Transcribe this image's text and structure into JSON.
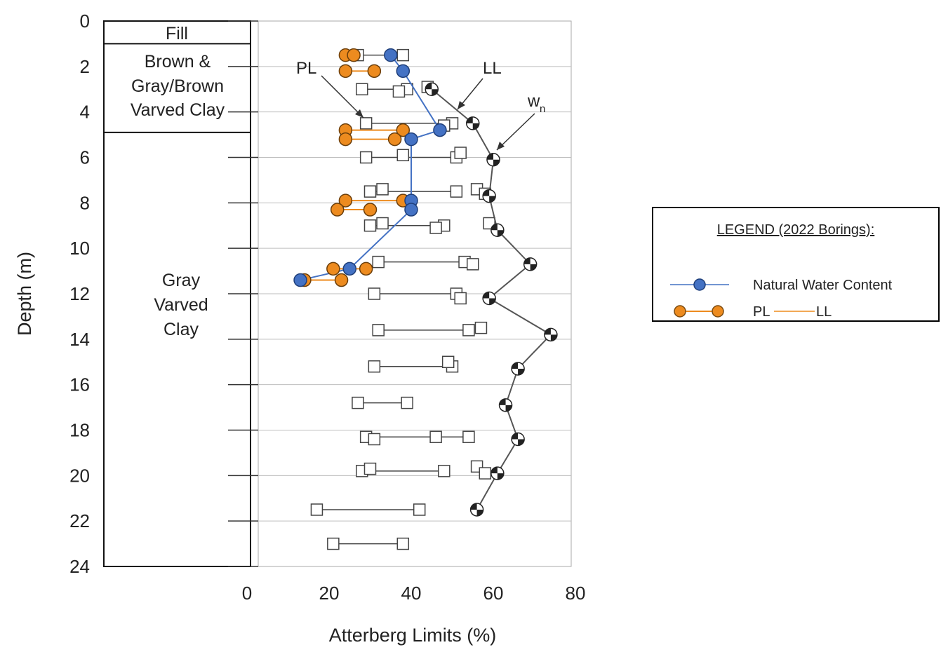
{
  "chart_data": {
    "type": "scatter",
    "title": "",
    "xlabel": "Atterberg Limits (%)",
    "ylabel": "Depth (m)",
    "xlim": [
      0,
      80
    ],
    "ylim": [
      24,
      0
    ],
    "x_ticks": [
      "0",
      "20",
      "40",
      "60",
      "80"
    ],
    "y_ticks": [
      "0",
      "2",
      "4",
      "6",
      "8",
      "10",
      "12",
      "14",
      "16",
      "18",
      "20",
      "22",
      "24"
    ],
    "strata": [
      {
        "label": "Fill",
        "top": 0,
        "bottom": 1.0
      },
      {
        "label": "Brown & Gray/Brown Varved Clay",
        "top": 1.0,
        "bottom": 4.9
      },
      {
        "label": "Gray Varved Clay",
        "top": 4.9,
        "bottom": 24
      }
    ],
    "annotations": {
      "pl": "PL",
      "ll": "LL",
      "wn": "w",
      "wn_sub": "n"
    },
    "historical_pl_ll": [
      {
        "depth": 1.5,
        "pl": 27,
        "ll": 38
      },
      {
        "depth": 3.0,
        "pl": 28,
        "ll": 39
      },
      {
        "depth": 4.5,
        "pl": 29,
        "ll": 50
      },
      {
        "depth": 6.0,
        "pl": 29,
        "ll": 51
      },
      {
        "depth": 7.5,
        "pl": 30,
        "ll": 51
      },
      {
        "depth": 9.0,
        "pl": 30,
        "ll": 48
      },
      {
        "depth": 10.6,
        "pl": 32,
        "ll": 53
      },
      {
        "depth": 12.0,
        "pl": 31,
        "ll": 51
      },
      {
        "depth": 13.6,
        "pl": 32,
        "ll": 54
      },
      {
        "depth": 15.2,
        "pl": 31,
        "ll": 50
      },
      {
        "depth": 16.8,
        "pl": 27,
        "ll": 39
      },
      {
        "depth": 18.3,
        "pl": 29,
        "ll": 54
      },
      {
        "depth": 19.8,
        "pl": 28,
        "ll": 48
      },
      {
        "depth": 21.5,
        "pl": 17,
        "ll": 42
      },
      {
        "depth": 23.0,
        "pl": 21,
        "ll": 38
      }
    ],
    "historical_extra_points": [
      {
        "x": 37,
        "depth": 3.1
      },
      {
        "x": 44,
        "depth": 2.9
      },
      {
        "x": 48,
        "depth": 4.6
      },
      {
        "x": 38,
        "depth": 5.9
      },
      {
        "x": 52,
        "depth": 5.8
      },
      {
        "x": 33,
        "depth": 7.4
      },
      {
        "x": 56,
        "depth": 7.4
      },
      {
        "x": 58,
        "depth": 7.6
      },
      {
        "x": 59,
        "depth": 8.9
      },
      {
        "x": 33,
        "depth": 8.9
      },
      {
        "x": 46,
        "depth": 9.1
      },
      {
        "x": 55,
        "depth": 10.7
      },
      {
        "x": 52,
        "depth": 12.2
      },
      {
        "x": 57,
        "depth": 13.5
      },
      {
        "x": 49,
        "depth": 15.0
      },
      {
        "x": 46,
        "depth": 18.3
      },
      {
        "x": 31,
        "depth": 18.4
      },
      {
        "x": 56,
        "depth": 19.6
      },
      {
        "x": 58,
        "depth": 19.9
      },
      {
        "x": 30,
        "depth": 19.7
      }
    ],
    "historical_wn": [
      {
        "x": 45,
        "depth": 3.0
      },
      {
        "x": 55,
        "depth": 4.5
      },
      {
        "x": 60,
        "depth": 6.1
      },
      {
        "x": 59,
        "depth": 7.7
      },
      {
        "x": 61,
        "depth": 9.2
      },
      {
        "x": 69,
        "depth": 10.7
      },
      {
        "x": 59,
        "depth": 12.2
      },
      {
        "x": 74,
        "depth": 13.8
      },
      {
        "x": 66,
        "depth": 15.3
      },
      {
        "x": 63,
        "depth": 16.9
      },
      {
        "x": 66,
        "depth": 18.4
      },
      {
        "x": 61,
        "depth": 19.9
      },
      {
        "x": 56,
        "depth": 21.5
      }
    ],
    "series": [
      {
        "name": "Natural Water Content",
        "color": "#4472c4",
        "points": [
          {
            "x": 35,
            "depth": 1.5
          },
          {
            "x": 38,
            "depth": 2.2
          },
          {
            "x": 47,
            "depth": 4.8
          },
          {
            "x": 40,
            "depth": 5.2
          },
          {
            "x": 40,
            "depth": 7.9
          },
          {
            "x": 40,
            "depth": 8.3
          },
          {
            "x": 25,
            "depth": 10.9
          },
          {
            "x": 13,
            "depth": 11.4
          }
        ]
      },
      {
        "name": "PL",
        "name2": "LL",
        "color": "#ed8b1f",
        "pairs": [
          {
            "depth": 1.5,
            "pl": 24,
            "ll": 26
          },
          {
            "depth": 2.2,
            "pl": 24,
            "ll": 31
          },
          {
            "depth": 4.8,
            "pl": 24,
            "ll": 38
          },
          {
            "depth": 5.2,
            "pl": 24,
            "ll": 36
          },
          {
            "depth": 7.9,
            "pl": 24,
            "ll": 38
          },
          {
            "depth": 8.3,
            "pl": 22,
            "ll": 30
          },
          {
            "depth": 10.9,
            "pl": 21,
            "ll": 29
          },
          {
            "depth": 11.4,
            "pl": 14,
            "ll": 23
          }
        ]
      }
    ],
    "legend": {
      "title": "LEGEND (2022 Borings):",
      "position": "right"
    }
  }
}
